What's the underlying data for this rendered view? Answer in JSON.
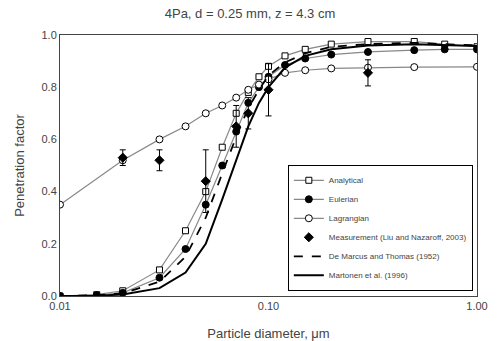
{
  "chart_data": {
    "type": "line",
    "title": "4Pa, d = 0.25 mm, z = 4.3 cm",
    "xlabel": "Particle diameter, μm",
    "ylabel": "Penetration factor",
    "log": "x",
    "grid": false,
    "legend": "lower right",
    "xlim": [
      0.01,
      1.0
    ],
    "ylim": [
      0.0,
      1.0
    ],
    "xticks": [
      0.01,
      {
        "value": 0.1,
        "label": "0.10"
      },
      {
        "value": 1.0,
        "label": "1.00"
      }
    ],
    "yticks": [
      {
        "value": 0.0,
        "label": "0.0"
      },
      0.2,
      0.4,
      0.6,
      0.8,
      {
        "value": 1.0,
        "label": "1.0"
      }
    ],
    "series": [
      {
        "name": "Analytical",
        "color": "#888888",
        "marker": "square-open",
        "line_style": "solid",
        "x": [
          0.01,
          0.015,
          0.02,
          0.03,
          0.04,
          0.05,
          0.06,
          0.07,
          0.08,
          0.09,
          0.1,
          0.12,
          0.15,
          0.2,
          0.3,
          0.5,
          0.7,
          1.0
        ],
        "values": [
          0.0,
          0.005,
          0.02,
          0.1,
          0.25,
          0.4,
          0.57,
          0.7,
          0.78,
          0.84,
          0.88,
          0.92,
          0.945,
          0.965,
          0.975,
          0.975,
          0.965,
          0.955
        ]
      },
      {
        "name": "Eulerian",
        "color": "#888888",
        "marker": "circle",
        "line_style": "solid",
        "x": [
          0.01,
          0.015,
          0.02,
          0.03,
          0.04,
          0.05,
          0.06,
          0.07,
          0.08,
          0.09,
          0.1,
          0.12,
          0.15,
          0.2,
          0.3,
          0.5,
          0.7,
          1.0
        ],
        "values": [
          0.0,
          0.003,
          0.012,
          0.07,
          0.18,
          0.35,
          0.5,
          0.63,
          0.74,
          0.8,
          0.84,
          0.885,
          0.91,
          0.925,
          0.935,
          0.942,
          0.945,
          0.945
        ]
      },
      {
        "name": "Lagrangian",
        "color": "#888888",
        "marker": "circle-open",
        "line_style": "solid",
        "x": [
          0.01,
          0.02,
          0.03,
          0.04,
          0.05,
          0.06,
          0.07,
          0.08,
          0.09,
          0.1,
          0.12,
          0.15,
          0.2,
          0.3,
          0.5,
          1.0
        ],
        "values": [
          0.35,
          0.52,
          0.6,
          0.65,
          0.7,
          0.73,
          0.76,
          0.79,
          0.81,
          0.83,
          0.855,
          0.865,
          0.872,
          0.875,
          0.877,
          0.878
        ]
      },
      {
        "name": "Measurement (Liu and Nazaroff, 2003)",
        "color": "#000000",
        "marker": "diamond",
        "line_style": "none",
        "x": [
          0.02,
          0.03,
          0.05,
          0.07,
          0.08,
          0.1,
          0.3
        ],
        "values": [
          0.53,
          0.52,
          0.44,
          0.65,
          0.7,
          0.79,
          0.855
        ],
        "yerr": [
          0.03,
          0.04,
          0.12,
          0.08,
          0.06,
          0.1,
          0.05
        ]
      },
      {
        "name": "De Marcus and Thomas (1952)",
        "color": "#000000",
        "marker": "none",
        "line_style": "dashed",
        "x": [
          0.01,
          0.015,
          0.02,
          0.03,
          0.04,
          0.05,
          0.06,
          0.07,
          0.08,
          0.09,
          0.1,
          0.12,
          0.15,
          0.2,
          0.3,
          0.5,
          0.7,
          1.0
        ],
        "values": [
          0.0,
          0.003,
          0.01,
          0.055,
          0.15,
          0.3,
          0.47,
          0.61,
          0.72,
          0.79,
          0.845,
          0.895,
          0.93,
          0.955,
          0.965,
          0.97,
          0.965,
          0.96
        ]
      },
      {
        "name": "Martonen et al. (1996)",
        "color": "#000000",
        "marker": "none",
        "line_style": "solid",
        "x": [
          0.01,
          0.015,
          0.02,
          0.03,
          0.04,
          0.05,
          0.06,
          0.07,
          0.08,
          0.09,
          0.1,
          0.12,
          0.15,
          0.2,
          0.3,
          0.5,
          0.7,
          1.0
        ],
        "values": [
          0.0,
          0.001,
          0.006,
          0.03,
          0.09,
          0.2,
          0.37,
          0.52,
          0.65,
          0.74,
          0.8,
          0.875,
          0.92,
          0.945,
          0.96,
          0.965,
          0.962,
          0.958
        ]
      }
    ]
  }
}
